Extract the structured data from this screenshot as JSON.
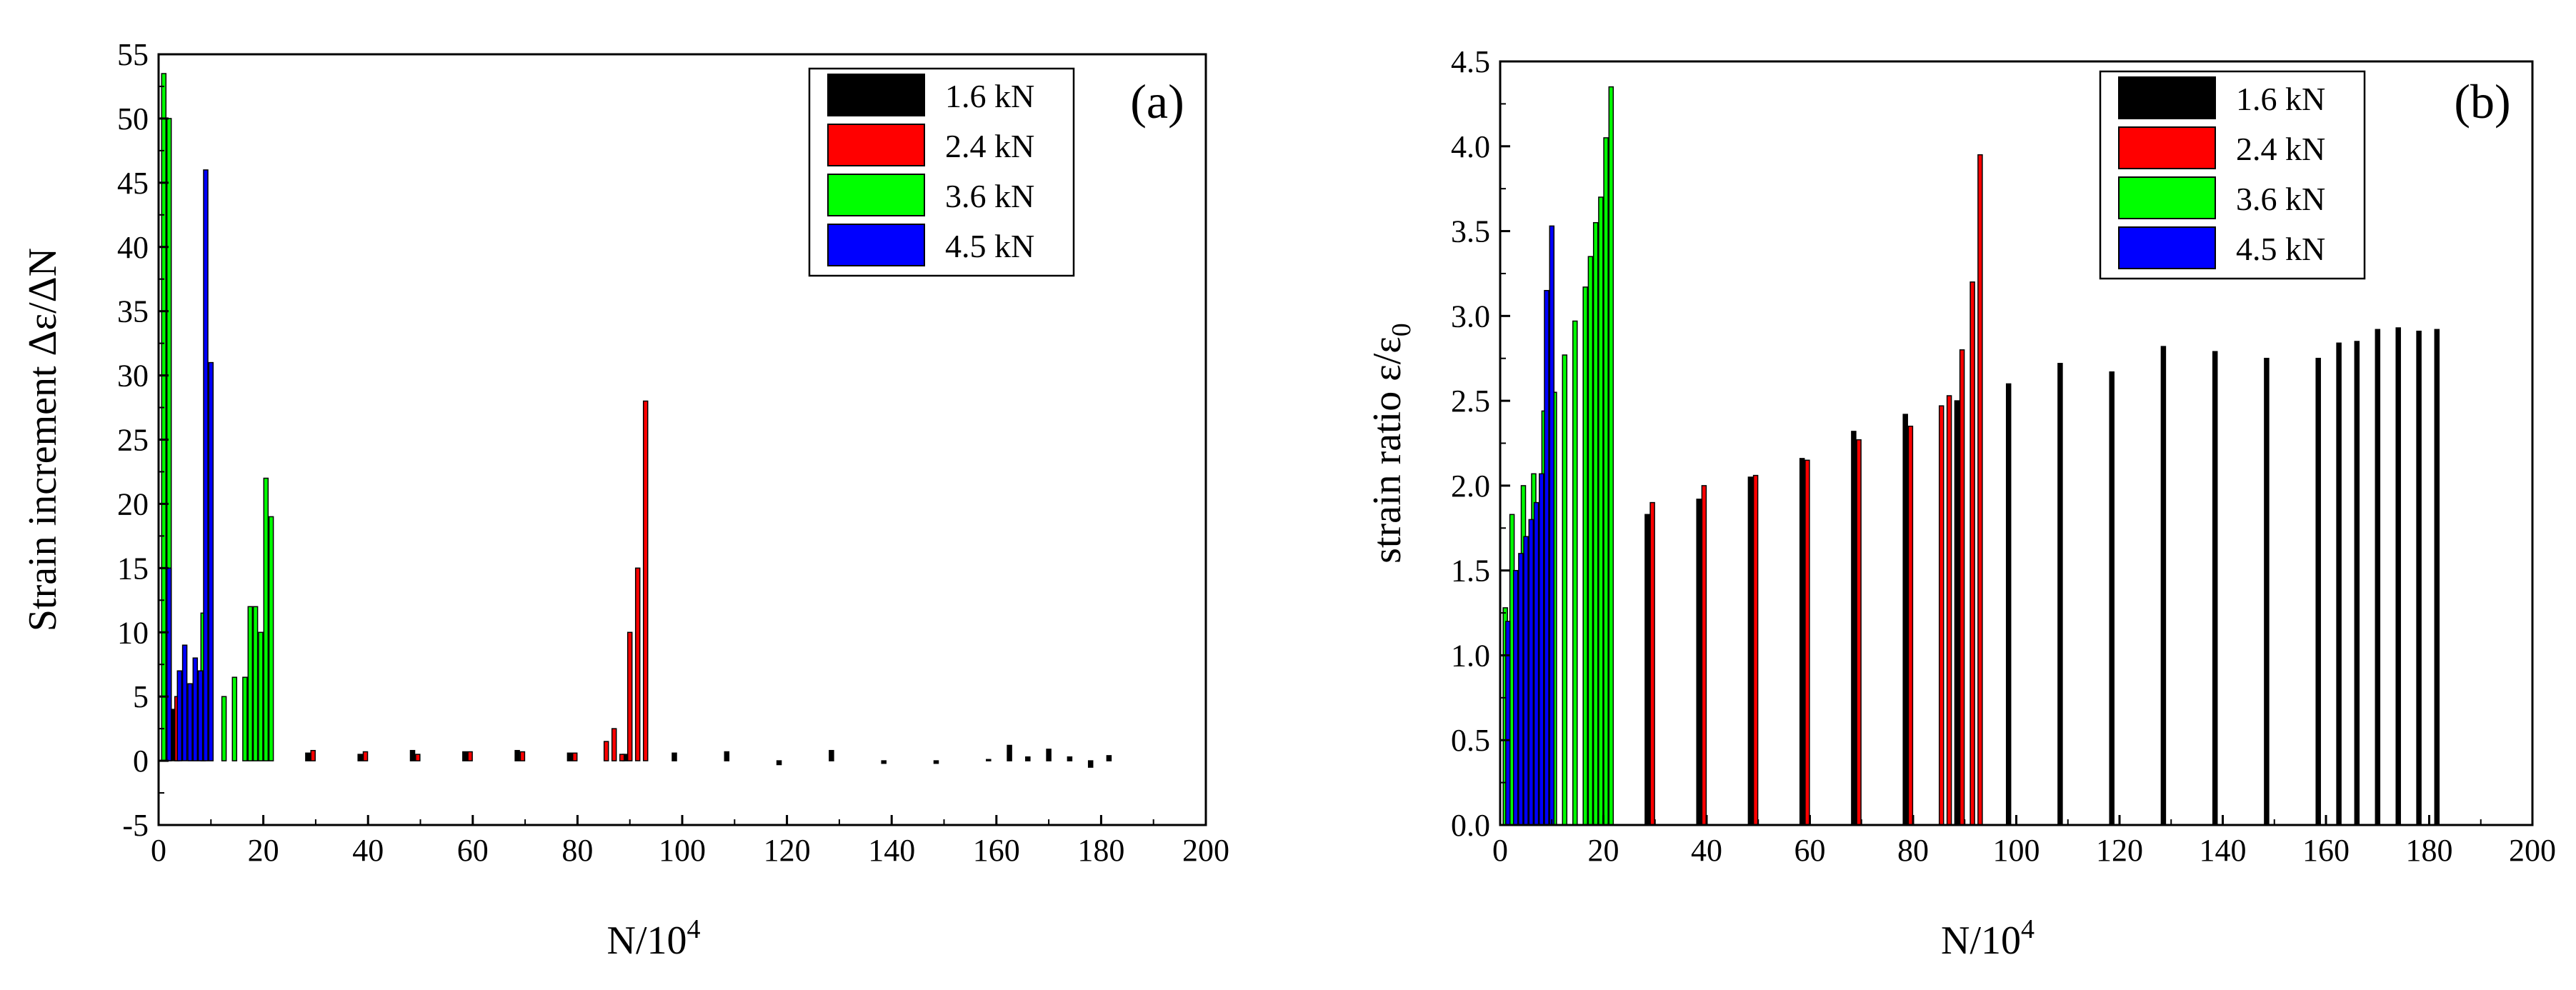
{
  "chart_data": [
    {
      "type": "bar",
      "panel_label": "(a)",
      "xlabel": "N/10",
      "xlabel_sup": "4",
      "ylabel": "Strain increment Δε/ΔN",
      "xlim": [
        0,
        200
      ],
      "ylim": [
        -5,
        55
      ],
      "xticks": [
        "0",
        "20",
        "40",
        "60",
        "80",
        "100",
        "120",
        "140",
        "160",
        "180",
        "200"
      ],
      "yticks": [
        "-5",
        "0",
        "5",
        "10",
        "15",
        "20",
        "25",
        "30",
        "35",
        "40",
        "45",
        "50",
        "55"
      ],
      "legend": [
        "1.6 kN",
        "2.4 kN",
        "3.6 kN",
        "4.5 kN"
      ],
      "legend_position": "top-right",
      "series": [
        {
          "name": "1.6 kN",
          "color": "#000000",
          "x": [
            1.5,
            3,
            28.5,
            38.5,
            48.5,
            58.5,
            68.5,
            78.5,
            89,
            98.5,
            108.5,
            118.5,
            128.5,
            138.5,
            148.5,
            158.5,
            162.5,
            166,
            170,
            174,
            178,
            181.5
          ],
          "values": [
            3,
            4,
            0.6,
            0.5,
            0.8,
            0.7,
            0.8,
            0.6,
            0.5,
            0.6,
            0.7,
            -0.3,
            0.8,
            -0.2,
            -0.2,
            0.1,
            1.2,
            0.3,
            0.9,
            0.3,
            -0.5,
            0.4
          ]
        },
        {
          "name": "2.4 kN",
          "color": "#ff0000",
          "x": [
            3.5,
            29.5,
            39.5,
            49.5,
            59.5,
            69.5,
            79.5,
            85.5,
            87,
            88.5,
            90,
            91.5,
            93
          ],
          "values": [
            5,
            0.8,
            0.7,
            0.5,
            0.7,
            0.7,
            0.6,
            1.5,
            2.5,
            0.5,
            10,
            15,
            28
          ]
        },
        {
          "name": "3.6 kN",
          "color": "#00ff00",
          "x": [
            1,
            2,
            8.5,
            12.5,
            14.5,
            16.5,
            17.5,
            18.5,
            19.5,
            20.5,
            21.5
          ],
          "values": [
            53.5,
            50,
            11.5,
            5,
            6.5,
            6.5,
            12,
            12,
            10,
            22,
            19
          ]
        },
        {
          "name": "4.5 kN",
          "color": "#0000ff",
          "x": [
            2,
            4,
            5,
            6,
            7,
            8,
            9,
            10
          ],
          "values": [
            15,
            7,
            9,
            6,
            8,
            7,
            46,
            31
          ]
        }
      ]
    },
    {
      "type": "bar",
      "panel_label": "(b)",
      "xlabel": "N/10",
      "xlabel_sup": "4",
      "ylabel": "strain ratio ε/ε",
      "ylabel_sub": "0",
      "xlim": [
        0,
        200
      ],
      "ylim": [
        0,
        4.5
      ],
      "xticks": [
        "0",
        "20",
        "40",
        "60",
        "80",
        "100",
        "120",
        "140",
        "160",
        "180",
        "200"
      ],
      "yticks": [
        "0.0",
        "0.5",
        "1.0",
        "1.5",
        "2.0",
        "2.5",
        "3.0",
        "3.5",
        "4.0",
        "4.5"
      ],
      "legend": [
        "1.6 kN",
        "2.4 kN",
        "3.6 kN",
        "4.5 kN"
      ],
      "legend_position": "top-right",
      "series": [
        {
          "name": "1.6 kN",
          "color": "#000000",
          "x": [
            28.5,
            38.5,
            48.5,
            58.5,
            68.5,
            78.5,
            88.5,
            98.5,
            108.5,
            118.5,
            128.5,
            138.5,
            148.5,
            158.5,
            162.5,
            166,
            170,
            174,
            178,
            181.5
          ],
          "values": [
            1.83,
            1.92,
            2.05,
            2.16,
            2.32,
            2.42,
            2.5,
            2.6,
            2.72,
            2.67,
            2.82,
            2.79,
            2.75,
            2.75,
            2.84,
            2.85,
            2.92,
            2.93,
            2.91,
            2.92
          ]
        },
        {
          "name": "2.4 kN",
          "color": "#ff0000",
          "x": [
            29.5,
            39.5,
            49.5,
            59.5,
            69.5,
            79.5,
            85.5,
            87,
            89.5,
            91.5,
            93
          ],
          "values": [
            1.9,
            2.0,
            2.06,
            2.15,
            2.27,
            2.35,
            2.47,
            2.53,
            2.8,
            3.2,
            3.95
          ]
        },
        {
          "name": "3.6 kN",
          "color": "#00ff00",
          "x": [
            1,
            2.3,
            4.5,
            6.5,
            8.5,
            10.5,
            12.5,
            14.5,
            16.5,
            17.5,
            18.5,
            19.5,
            20.5,
            21.5
          ],
          "values": [
            1.28,
            1.83,
            2.0,
            2.07,
            2.44,
            2.55,
            2.77,
            2.97,
            3.17,
            3.35,
            3.55,
            3.7,
            4.05,
            4.35
          ]
        },
        {
          "name": "4.5 kN",
          "color": "#0000ff",
          "x": [
            1.5,
            3,
            4,
            5,
            6,
            7,
            8,
            9,
            10
          ],
          "values": [
            1.2,
            1.5,
            1.6,
            1.7,
            1.8,
            1.9,
            2.07,
            3.15,
            3.53
          ]
        }
      ]
    }
  ]
}
